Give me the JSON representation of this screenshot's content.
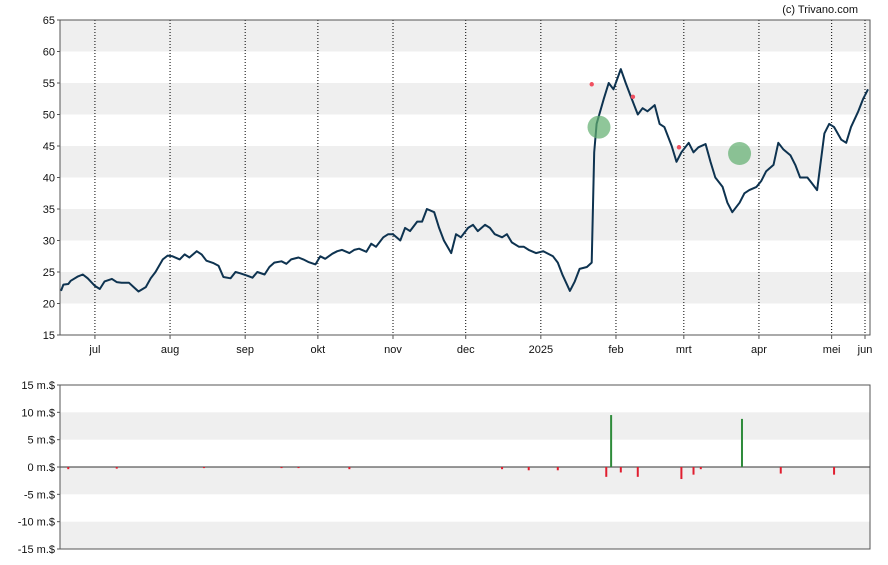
{
  "copyright": "(c) Trivano.com",
  "colors": {
    "price_line": "#0e3350",
    "band": "#efefef",
    "grid": "#000000",
    "positive_bar": "#2e8b3a",
    "negative_bar": "#e01e2f",
    "marker_green": "#5fae6e",
    "marker_red": "#f05060"
  },
  "chart_data": [
    {
      "type": "line",
      "name": "price",
      "ylim": [
        15,
        65
      ],
      "yticks": [
        "15",
        "20",
        "25",
        "30",
        "35",
        "40",
        "45",
        "50",
        "55",
        "60",
        "65"
      ],
      "x_labels": [
        "jul",
        "aug",
        "sep",
        "okt",
        "nov",
        "dec",
        "2025",
        "feb",
        "mrt",
        "apr",
        "mei",
        "jun"
      ],
      "grid": "vertical dotted at month starts, alternating horizontal bands",
      "points": [
        [
          "2024-06-17",
          22.0
        ],
        [
          "2024-06-18",
          23.0
        ],
        [
          "2024-06-20",
          23.1
        ],
        [
          "2024-06-21",
          23.6
        ],
        [
          "2024-06-24",
          24.3
        ],
        [
          "2024-06-26",
          24.6
        ],
        [
          "2024-06-28",
          24.0
        ],
        [
          "2024-07-01",
          22.8
        ],
        [
          "2024-07-03",
          22.3
        ],
        [
          "2024-07-05",
          23.5
        ],
        [
          "2024-07-08",
          23.9
        ],
        [
          "2024-07-10",
          23.4
        ],
        [
          "2024-07-12",
          23.3
        ],
        [
          "2024-07-15",
          23.3
        ],
        [
          "2024-07-17",
          22.6
        ],
        [
          "2024-07-19",
          21.9
        ],
        [
          "2024-07-22",
          22.6
        ],
        [
          "2024-07-24",
          24.0
        ],
        [
          "2024-07-26",
          25.0
        ],
        [
          "2024-07-29",
          27.0
        ],
        [
          "2024-07-31",
          27.6
        ],
        [
          "2024-08-02",
          27.5
        ],
        [
          "2024-08-05",
          27.0
        ],
        [
          "2024-08-07",
          27.8
        ],
        [
          "2024-08-09",
          27.3
        ],
        [
          "2024-08-12",
          28.3
        ],
        [
          "2024-08-14",
          27.8
        ],
        [
          "2024-08-16",
          26.8
        ],
        [
          "2024-08-19",
          26.4
        ],
        [
          "2024-08-21",
          26.0
        ],
        [
          "2024-08-23",
          24.2
        ],
        [
          "2024-08-26",
          24.0
        ],
        [
          "2024-08-28",
          25.0
        ],
        [
          "2024-08-30",
          24.8
        ],
        [
          "2024-09-02",
          24.4
        ],
        [
          "2024-09-04",
          24.1
        ],
        [
          "2024-09-06",
          25.0
        ],
        [
          "2024-09-09",
          24.6
        ],
        [
          "2024-09-11",
          25.8
        ],
        [
          "2024-09-13",
          26.5
        ],
        [
          "2024-09-16",
          26.7
        ],
        [
          "2024-09-18",
          26.3
        ],
        [
          "2024-09-20",
          27.0
        ],
        [
          "2024-09-23",
          27.3
        ],
        [
          "2024-09-25",
          27.0
        ],
        [
          "2024-09-27",
          26.6
        ],
        [
          "2024-09-30",
          26.2
        ],
        [
          "2024-10-02",
          27.5
        ],
        [
          "2024-10-04",
          27.1
        ],
        [
          "2024-10-07",
          27.9
        ],
        [
          "2024-10-09",
          28.3
        ],
        [
          "2024-10-11",
          28.5
        ],
        [
          "2024-10-14",
          28.0
        ],
        [
          "2024-10-16",
          28.5
        ],
        [
          "2024-10-18",
          28.7
        ],
        [
          "2024-10-21",
          28.2
        ],
        [
          "2024-10-23",
          29.5
        ],
        [
          "2024-10-25",
          29.0
        ],
        [
          "2024-10-28",
          30.5
        ],
        [
          "2024-10-30",
          31.0
        ],
        [
          "2024-11-01",
          31.0
        ],
        [
          "2024-11-04",
          30.0
        ],
        [
          "2024-11-06",
          32.0
        ],
        [
          "2024-11-08",
          31.5
        ],
        [
          "2024-11-11",
          33.0
        ],
        [
          "2024-11-13",
          33.0
        ],
        [
          "2024-11-15",
          35.0
        ],
        [
          "2024-11-18",
          34.5
        ],
        [
          "2024-11-20",
          32.0
        ],
        [
          "2024-11-22",
          30.0
        ],
        [
          "2024-11-25",
          28.0
        ],
        [
          "2024-11-27",
          31.0
        ],
        [
          "2024-11-29",
          30.5
        ],
        [
          "2024-12-02",
          32.0
        ],
        [
          "2024-12-04",
          32.5
        ],
        [
          "2024-12-06",
          31.5
        ],
        [
          "2024-12-09",
          32.5
        ],
        [
          "2024-12-11",
          32.0
        ],
        [
          "2024-12-13",
          31.0
        ],
        [
          "2024-12-16",
          30.5
        ],
        [
          "2024-12-18",
          31.0
        ],
        [
          "2024-12-20",
          29.7
        ],
        [
          "2024-12-23",
          29.0
        ],
        [
          "2024-12-25",
          29.0
        ],
        [
          "2024-12-27",
          28.5
        ],
        [
          "2024-12-30",
          28.0
        ],
        [
          "2025-01-02",
          28.3
        ],
        [
          "2025-01-06",
          27.5
        ],
        [
          "2025-01-08",
          26.5
        ],
        [
          "2025-01-10",
          24.5
        ],
        [
          "2025-01-13",
          22.0
        ],
        [
          "2025-01-15",
          23.5
        ],
        [
          "2025-01-17",
          25.5
        ],
        [
          "2025-01-20",
          25.8
        ],
        [
          "2025-01-22",
          26.5
        ],
        [
          "2025-01-23",
          44.0
        ],
        [
          "2025-01-24",
          48.5
        ],
        [
          "2025-01-27",
          52.5
        ],
        [
          "2025-01-29",
          55.0
        ],
        [
          "2025-01-31",
          54.0
        ],
        [
          "2025-02-03",
          57.2
        ],
        [
          "2025-02-05",
          55.0
        ],
        [
          "2025-02-07",
          53.0
        ],
        [
          "2025-02-10",
          50.0
        ],
        [
          "2025-02-12",
          51.0
        ],
        [
          "2025-02-14",
          50.5
        ],
        [
          "2025-02-17",
          51.5
        ],
        [
          "2025-02-19",
          48.5
        ],
        [
          "2025-02-21",
          48.0
        ],
        [
          "2025-02-24",
          45.0
        ],
        [
          "2025-02-26",
          42.5
        ],
        [
          "2025-02-28",
          44.0
        ],
        [
          "2025-03-03",
          45.5
        ],
        [
          "2025-03-05",
          44.0
        ],
        [
          "2025-03-07",
          44.8
        ],
        [
          "2025-03-10",
          45.3
        ],
        [
          "2025-03-12",
          42.5
        ],
        [
          "2025-03-14",
          40.0
        ],
        [
          "2025-03-17",
          38.5
        ],
        [
          "2025-03-19",
          36.0
        ],
        [
          "2025-03-21",
          34.5
        ],
        [
          "2025-03-24",
          36.0
        ],
        [
          "2025-03-26",
          37.5
        ],
        [
          "2025-03-28",
          38.0
        ],
        [
          "2025-03-31",
          38.5
        ],
        [
          "2025-04-02",
          39.5
        ],
        [
          "2025-04-04",
          41.0
        ],
        [
          "2025-04-07",
          42.0
        ],
        [
          "2025-04-09",
          45.5
        ],
        [
          "2025-04-11",
          44.5
        ],
        [
          "2025-04-14",
          43.5
        ],
        [
          "2025-04-16",
          42.0
        ],
        [
          "2025-04-18",
          40.0
        ],
        [
          "2025-04-21",
          40.0
        ],
        [
          "2025-04-23",
          39.0
        ],
        [
          "2025-04-25",
          38.0
        ],
        [
          "2025-04-28",
          47.0
        ],
        [
          "2025-04-30",
          48.5
        ],
        [
          "2025-05-02",
          48.0
        ],
        [
          "2025-05-05",
          46.0
        ],
        [
          "2025-05-07",
          45.5
        ],
        [
          "2025-05-09",
          48.0
        ],
        [
          "2025-05-12",
          50.5
        ],
        [
          "2025-05-14",
          52.5
        ],
        [
          "2025-05-16",
          54.0
        ]
      ],
      "markers": [
        {
          "date": "2025-01-22",
          "value": 54.8,
          "kind": "red-dot"
        },
        {
          "date": "2025-02-08",
          "value": 52.8,
          "kind": "red-dot"
        },
        {
          "date": "2025-02-27",
          "value": 44.8,
          "kind": "red-dot"
        },
        {
          "date": "2025-01-25",
          "value": 48.0,
          "kind": "green-circle"
        },
        {
          "date": "2025-03-24",
          "value": 43.8,
          "kind": "green-circle"
        }
      ]
    },
    {
      "type": "bar",
      "name": "volume",
      "unit": "m.$",
      "ylim": [
        -15,
        15
      ],
      "yticks": [
        "15 m.$",
        "10 m.$",
        "5 m.$",
        "0 m.$",
        "-5 m.$",
        "-10 m.$",
        "-15 m.$"
      ],
      "bars": [
        [
          "2024-06-20",
          -0.4
        ],
        [
          "2024-07-10",
          -0.3
        ],
        [
          "2024-08-15",
          -0.2
        ],
        [
          "2024-09-16",
          -0.2
        ],
        [
          "2024-09-23",
          -0.2
        ],
        [
          "2024-10-14",
          -0.4
        ],
        [
          "2024-12-16",
          -0.4
        ],
        [
          "2024-12-27",
          -0.6
        ],
        [
          "2025-01-08",
          -0.6
        ],
        [
          "2025-01-28",
          -1.8
        ],
        [
          "2025-01-30",
          9.5
        ],
        [
          "2025-02-03",
          -1.0
        ],
        [
          "2025-02-10",
          -1.8
        ],
        [
          "2025-02-28",
          -2.2
        ],
        [
          "2025-03-05",
          -1.4
        ],
        [
          "2025-03-08",
          -0.4
        ],
        [
          "2025-03-25",
          8.8
        ],
        [
          "2025-04-10",
          -1.2
        ],
        [
          "2025-05-02",
          -1.4
        ]
      ]
    }
  ]
}
